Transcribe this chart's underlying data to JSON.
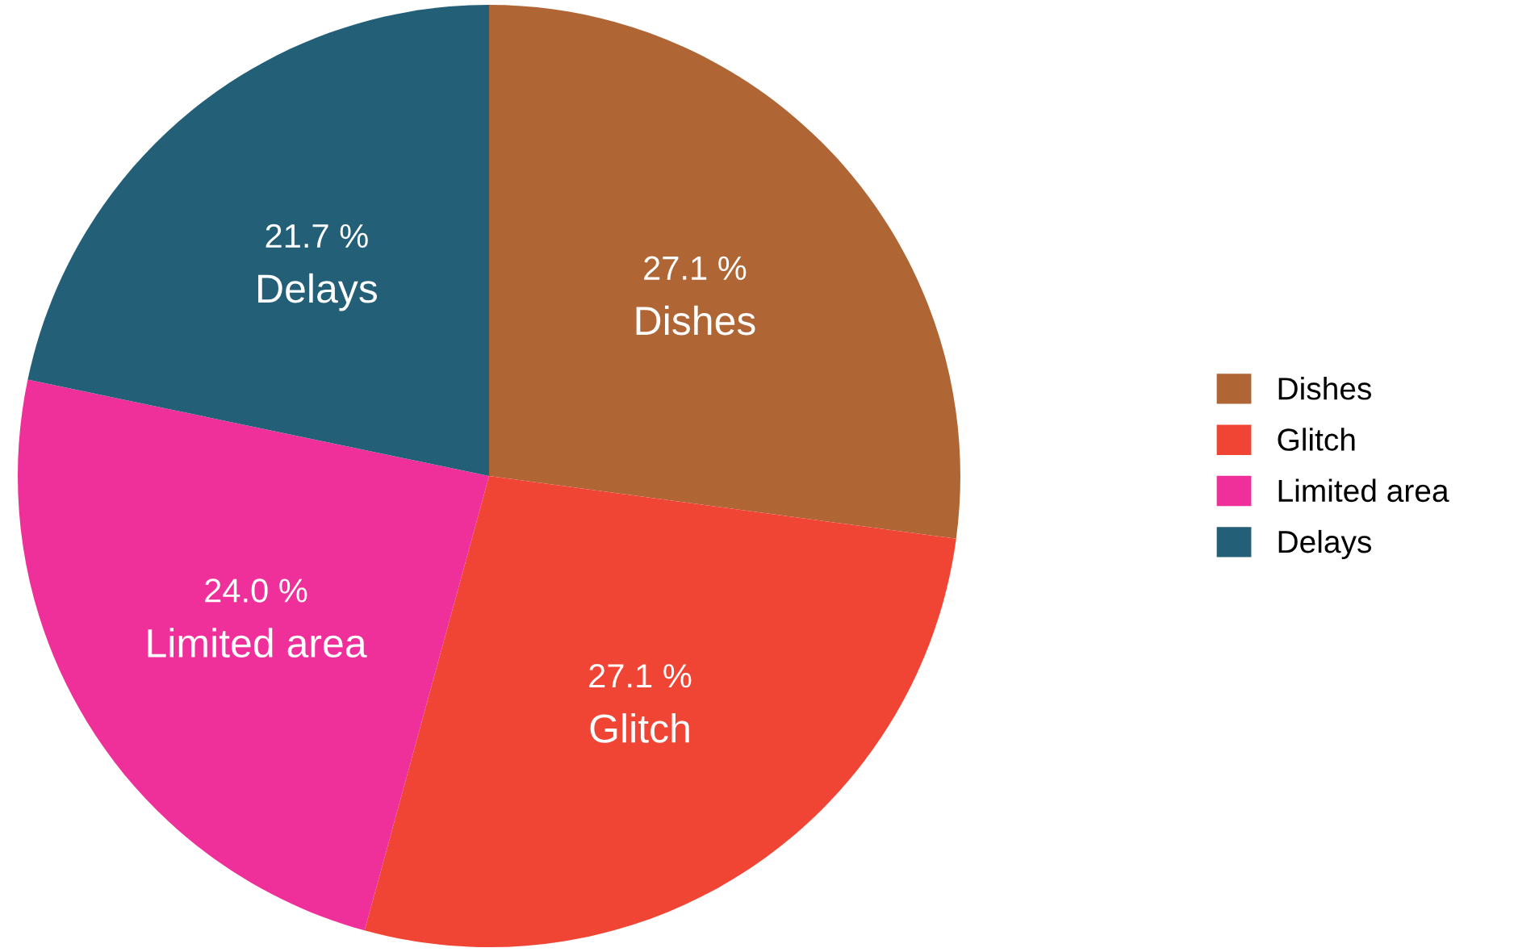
{
  "chart_data": {
    "type": "pie",
    "categories": [
      "Dishes",
      "Glitch",
      "Limited area",
      "Delays"
    ],
    "values": [
      27.1,
      27.1,
      24.0,
      21.7
    ],
    "value_labels": [
      "27.1 %",
      "27.1 %",
      "24.0 %",
      "21.7 %"
    ],
    "colors": [
      "#b06535",
      "#f04535",
      "#f0309a",
      "#236078"
    ],
    "legend": "right"
  }
}
